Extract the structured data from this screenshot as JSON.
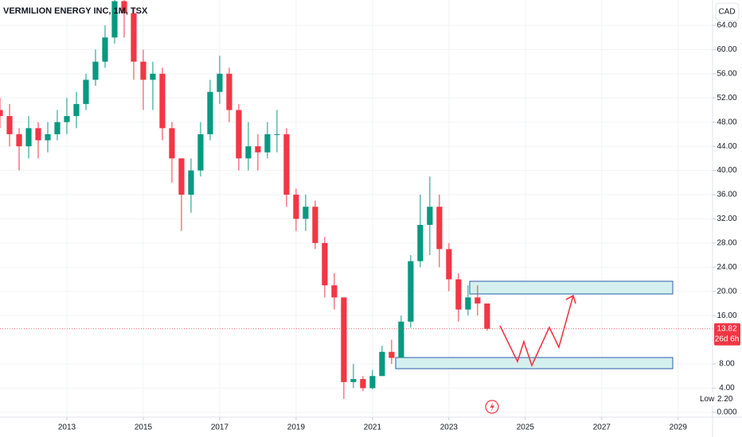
{
  "chart_data": {
    "type": "candlestick",
    "title": "VERMILION ENERGY INC, 1M, TSX",
    "currency": "CAD",
    "x": [
      2011.25,
      2011.5,
      2011.75,
      2012,
      2012.25,
      2012.5,
      2012.75,
      2013,
      2013.25,
      2013.5,
      2013.75,
      2014,
      2014.25,
      2014.5,
      2014.75,
      2015,
      2015.25,
      2015.5,
      2015.75,
      2016,
      2016.25,
      2016.5,
      2016.75,
      2017,
      2017.25,
      2017.5,
      2017.75,
      2018,
      2018.25,
      2018.5,
      2018.75,
      2019,
      2019.25,
      2019.5,
      2019.75,
      2020,
      2020.25,
      2020.5,
      2020.75,
      2021,
      2021.25,
      2021.5,
      2021.75,
      2022,
      2022.25,
      2022.5,
      2022.75,
      2023,
      2023.25,
      2023.5,
      2023.75,
      2024
    ],
    "open": [
      50,
      49,
      46,
      44,
      47,
      45,
      46,
      48,
      49,
      51,
      55,
      58,
      62,
      68,
      66,
      58,
      55,
      56,
      47,
      42,
      36,
      40,
      46,
      53,
      56,
      50,
      42,
      44,
      43,
      46,
      46,
      36,
      32,
      34,
      28,
      21,
      19,
      5,
      5.5,
      4,
      6,
      10,
      9,
      15,
      25,
      31,
      34,
      27,
      22,
      17,
      19,
      18
    ],
    "high": [
      52,
      51,
      47,
      49,
      48,
      48,
      50,
      52,
      53,
      56,
      60,
      64,
      72,
      72,
      67,
      60,
      58,
      57,
      48,
      42,
      42,
      48,
      55,
      59,
      57,
      51,
      48,
      46,
      48,
      50,
      47,
      37,
      36,
      35,
      29,
      23,
      19,
      8,
      6,
      7,
      11,
      12,
      16,
      26,
      36,
      39,
      36,
      28,
      23,
      21,
      21,
      18
    ],
    "low": [
      47,
      44,
      40,
      42,
      42,
      43,
      45,
      46,
      47,
      50,
      54,
      57,
      61,
      62,
      55,
      50,
      50,
      45,
      38,
      30,
      33,
      39,
      45,
      51,
      48,
      40,
      40,
      40,
      42,
      43,
      34,
      30,
      30,
      27,
      19,
      17,
      2.2,
      4,
      3.5,
      3.8,
      6,
      8,
      9,
      14,
      24,
      26,
      24,
      20,
      15,
      16,
      16,
      13.5
    ],
    "close": [
      49,
      46,
      44,
      47,
      45,
      46,
      48,
      49,
      51,
      55,
      58,
      62,
      68,
      66,
      58,
      55,
      56,
      47,
      42,
      36,
      40,
      46,
      53,
      56,
      50,
      42,
      44,
      43,
      46,
      46,
      36,
      32,
      34,
      28,
      21,
      19,
      5,
      5.5,
      4,
      6,
      10,
      9,
      15,
      25,
      31,
      34,
      27,
      22,
      17,
      19,
      18,
      13.82
    ],
    "up_color": "#089981",
    "down_color": "#f23645",
    "xlim": [
      2011.25,
      2029.9
    ],
    "xticks": [
      2013,
      2015,
      2017,
      2019,
      2021,
      2023,
      2025,
      2027,
      2029
    ],
    "ylim": [
      -0.8,
      68.2
    ],
    "yticks": [
      {
        "value": 0,
        "label": "0.000"
      },
      {
        "value": 4,
        "label": "4.00"
      },
      {
        "value": 8,
        "label": "8.00"
      },
      {
        "value": 16,
        "label": "16.00"
      },
      {
        "value": 20,
        "label": "20.00"
      },
      {
        "value": 24,
        "label": "24.00"
      },
      {
        "value": 28,
        "label": "28.00"
      },
      {
        "value": 32,
        "label": "32.00"
      },
      {
        "value": 36,
        "label": "36.00"
      },
      {
        "value": 40,
        "label": "40.00"
      },
      {
        "value": 44,
        "label": "44.00"
      },
      {
        "value": 48,
        "label": "48.00"
      },
      {
        "value": 52,
        "label": "52.00"
      },
      {
        "value": 56,
        "label": "56.00"
      },
      {
        "value": 60,
        "label": "60.00"
      },
      {
        "value": 64,
        "label": "64.00"
      }
    ],
    "grid": true,
    "last_price": {
      "value": 13.82,
      "countdown": "26d 6h"
    },
    "low_marker": {
      "label": "Low",
      "value": 2.2,
      "value_label": "2.20"
    }
  }
}
